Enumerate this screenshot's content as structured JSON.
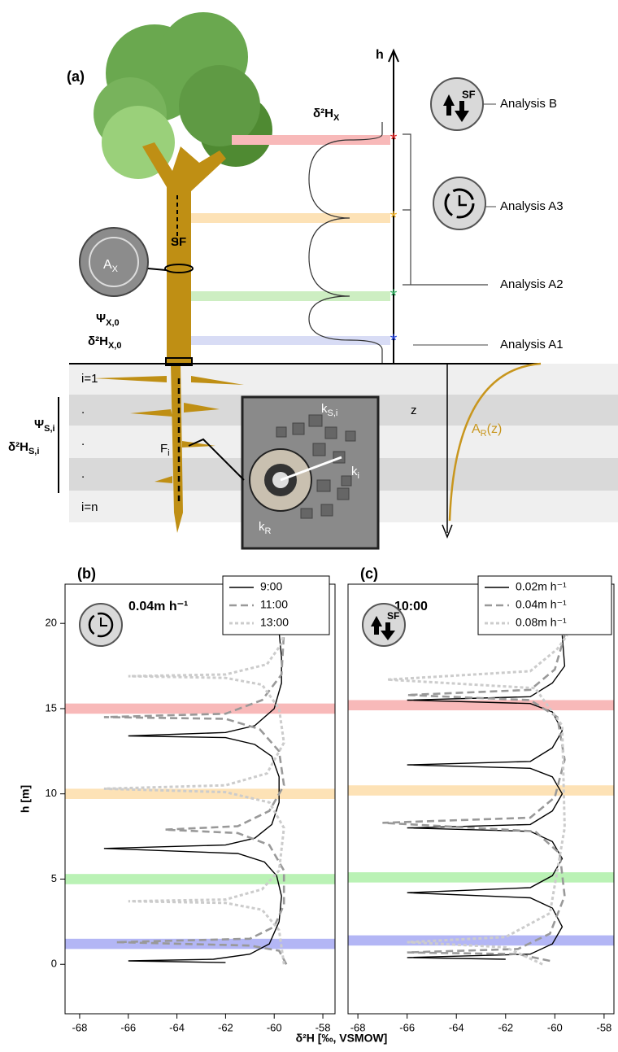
{
  "diagram": {
    "panel_label": "(a)",
    "h_axis": "h",
    "d2h_x": {
      "text": "δ²H",
      "sub": "X"
    },
    "stem_flow": "SF",
    "xylem_area": {
      "text": "A",
      "sub": "X"
    },
    "psi_x0": {
      "text": "Ψ",
      "sub": "X,0"
    },
    "d2h_x0": {
      "text": "δ²H",
      "sub": "X,0"
    },
    "layers": [
      "i=1",
      ".",
      ".",
      ".",
      "i=n"
    ],
    "psi_si": {
      "text": "Ψ",
      "sub": "S,i"
    },
    "d2h_si": {
      "text": "δ²H",
      "sub": "S,i"
    },
    "flux": {
      "text": "F",
      "sub": "i"
    },
    "k_si": {
      "text": "k",
      "sub": "S,i"
    },
    "k_i": {
      "text": "k",
      "sub": "i"
    },
    "k_r": {
      "text": "k",
      "sub": "R"
    },
    "z_axis": "z",
    "root_area": {
      "text": "A",
      "sub": "R",
      "suffix": "(z)"
    },
    "icon_sf": "SF",
    "analyses": [
      "Analysis B",
      "Analysis A3",
      "Analysis A2",
      "Analysis A1"
    ]
  },
  "x_axis_label": "δ²H [‰, VSMOW]",
  "chart_data": [
    {
      "type": "line",
      "panel_label": "(b)",
      "subtitle": "0.04m h⁻¹",
      "ylabel": "h [m]",
      "xlim": [
        -68.6,
        -57.5
      ],
      "xticks": [
        -68,
        -66,
        -64,
        -62,
        -60,
        -58
      ],
      "ylim": [
        -2.9,
        22.3
      ],
      "yticks": [
        0,
        5,
        10,
        15,
        20
      ],
      "bands": [
        {
          "value": 1.2,
          "color": "#b3b6f5"
        },
        {
          "value": 5,
          "color": "#baf2b5"
        },
        {
          "value": 10,
          "color": "#fde2b6"
        },
        {
          "value": 15,
          "color": "#f8b9b9"
        }
      ],
      "series": [
        {
          "name": "9:00",
          "color": "#000000",
          "dash": "solid",
          "x": [
            -62,
            -66,
            -62.5,
            -61,
            -60.2,
            -59.8,
            -59.7,
            -59.9,
            -60.4,
            -61.5,
            -67,
            -62,
            -60.8,
            -60.1,
            -59.8,
            -59.8,
            -60.1,
            -60.8,
            -62,
            -66,
            -62,
            -60.8,
            -60,
            -59.7,
            -59.7,
            -59.8
          ],
          "y": [
            0.1,
            0.2,
            0.3,
            0.6,
            1.2,
            2.5,
            4,
            5.2,
            6,
            6.5,
            6.8,
            7.0,
            7.4,
            8.2,
            9.5,
            11,
            12.2,
            12.9,
            13.3,
            13.4,
            13.6,
            14.0,
            15,
            16.5,
            18,
            19.5
          ]
        },
        {
          "name": "11:00",
          "color": "#999999",
          "dash": "dashed",
          "x": [
            -59.5,
            -59.8,
            -61,
            -66.5,
            -61,
            -60,
            -59.6,
            -59.6,
            -60.2,
            -61.5,
            -64.5,
            -61.5,
            -60.2,
            -59.6,
            -59.8,
            -60.6,
            -62,
            -67,
            -62,
            -60.5,
            -59.7,
            -59.6
          ],
          "y": [
            0,
            0.8,
            1.1,
            1.3,
            1.5,
            2.2,
            3.5,
            5.5,
            7,
            7.7,
            7.9,
            8.1,
            9,
            10.5,
            12.5,
            13.8,
            14.4,
            14.5,
            14.7,
            15.5,
            17,
            19.5
          ]
        },
        {
          "name": "13:00",
          "color": "#cccccc",
          "dash": "dotted",
          "x": [
            -59.6,
            -59.8,
            -60.5,
            -62,
            -66,
            -62,
            -60.5,
            -59.8,
            -59.6,
            -60.2,
            -62,
            -67,
            -62,
            -60.3,
            -59.6,
            -59.8,
            -60.5,
            -62,
            -66,
            -62,
            -60.3,
            -59.7,
            -59.6
          ],
          "y": [
            0,
            2,
            3.2,
            3.6,
            3.7,
            3.8,
            4.4,
            5.5,
            8,
            9.5,
            10.1,
            10.3,
            10.5,
            11.2,
            13,
            15,
            16.4,
            16.8,
            16.9,
            17.0,
            17.6,
            18.8,
            19.5
          ]
        }
      ]
    },
    {
      "type": "line",
      "panel_label": "(c)",
      "subtitle": "10:00",
      "icon_label": "SF",
      "xlim": [
        -68.4,
        -57.6
      ],
      "xticks": [
        -68,
        -66,
        -64,
        -62,
        -60,
        -58
      ],
      "ylim": [
        -2.9,
        22.3
      ],
      "bands": [
        {
          "value": 1.4,
          "color": "#b3b6f5"
        },
        {
          "value": 5.1,
          "color": "#baf2b5"
        },
        {
          "value": 10.2,
          "color": "#fde2b6"
        },
        {
          "value": 15.2,
          "color": "#f8b9b9"
        }
      ],
      "series": [
        {
          "name": "0.02m h⁻¹",
          "color": "#000000",
          "dash": "solid",
          "x": [
            -62,
            -66,
            -61,
            -60.1,
            -59.7,
            -60.1,
            -61,
            -66,
            -61,
            -60.1,
            -59.7,
            -60.1,
            -61,
            -66,
            -61,
            -60.1,
            -59.7,
            -60.1,
            -61,
            -66,
            -61,
            -60.1,
            -59.7,
            -60.1,
            -61,
            -66,
            -61,
            -60.1,
            -59.6,
            -59.7
          ],
          "y": [
            0.3,
            0.4,
            0.6,
            1.2,
            2.2,
            3.3,
            3.9,
            4.2,
            4.5,
            5.2,
            6.2,
            7.2,
            7.8,
            8.0,
            8.2,
            9,
            10,
            11,
            11.5,
            11.7,
            11.9,
            12.7,
            13.7,
            14.8,
            15.3,
            15.5,
            15.7,
            16.5,
            17.5,
            19.3
          ]
        },
        {
          "name": "0.04m h⁻¹",
          "color": "#999999",
          "dash": "dashed",
          "x": [
            -60.2,
            -61.5,
            -66,
            -61.5,
            -60.2,
            -59.6,
            -59.8,
            -60.8,
            -67,
            -61,
            -60,
            -59.6,
            -59.9,
            -61,
            -66,
            -61,
            -60,
            -59.6
          ],
          "y": [
            0.2,
            0.6,
            0.7,
            0.9,
            1.8,
            4,
            6.5,
            7.8,
            8.3,
            8.6,
            9.8,
            12,
            14.5,
            15.5,
            15.8,
            16.1,
            17.3,
            19.3
          ]
        },
        {
          "name": "0.08m h⁻¹",
          "color": "#cccccc",
          "dash": "dotted",
          "x": [
            -60.5,
            -62,
            -66,
            -62,
            -60.2,
            -59.6,
            -59.7,
            -60.8,
            -66.8,
            -61,
            -59.9,
            -59.5
          ],
          "y": [
            0,
            1.0,
            1.3,
            1.6,
            3,
            8,
            14,
            16.2,
            16.7,
            17.2,
            18.5,
            19.3
          ]
        }
      ]
    }
  ]
}
